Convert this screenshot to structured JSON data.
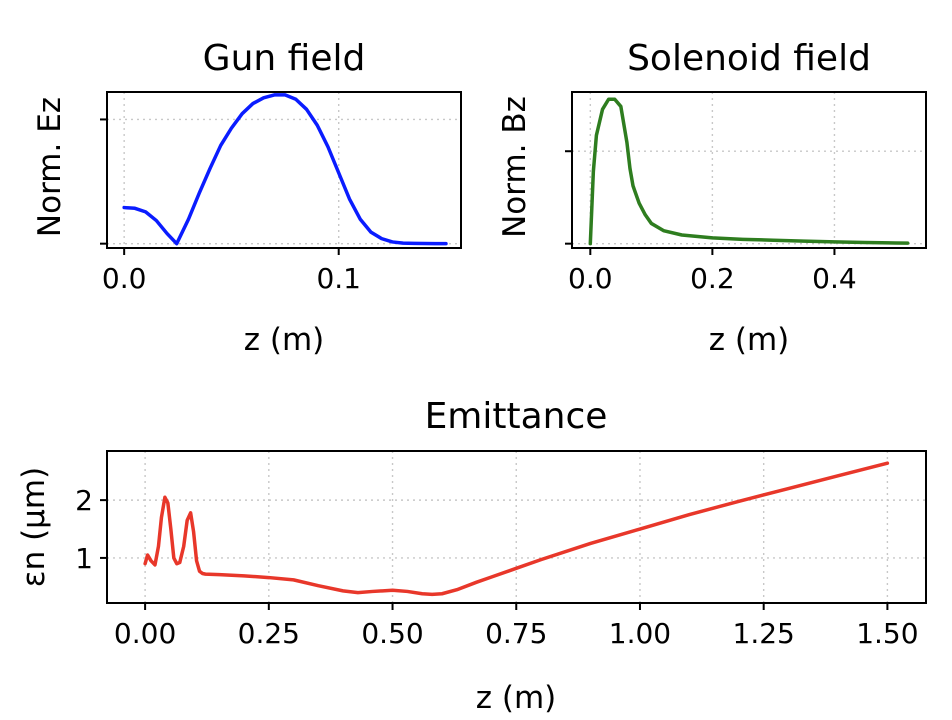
{
  "chart_data": [
    {
      "type": "line",
      "title": "Gun field",
      "xlabel": "z (m)",
      "ylabel": "Norm. Ez",
      "xlim": [
        -0.008,
        0.157
      ],
      "ylim": [
        -0.03,
        1.05
      ],
      "xticks": [
        0.0,
        0.1
      ],
      "xticklabels": [
        "0.0",
        "0.1"
      ],
      "yticks": [
        0.0,
        0.86
      ],
      "yticklabels": [
        "",
        ""
      ],
      "grid": true,
      "series": [
        {
          "color": "#0a1cff",
          "x": [
            0.0,
            0.005,
            0.01,
            0.015,
            0.02,
            0.0245,
            0.03,
            0.035,
            0.04,
            0.045,
            0.05,
            0.055,
            0.06,
            0.065,
            0.07,
            0.075,
            0.08,
            0.085,
            0.09,
            0.095,
            0.1,
            0.105,
            0.11,
            0.115,
            0.12,
            0.125,
            0.13,
            0.135,
            0.14,
            0.145,
            0.15
          ],
          "y": [
            0.25,
            0.245,
            0.22,
            0.16,
            0.07,
            0.0,
            0.17,
            0.35,
            0.52,
            0.68,
            0.8,
            0.9,
            0.97,
            1.01,
            1.03,
            1.03,
            1.0,
            0.93,
            0.82,
            0.67,
            0.49,
            0.31,
            0.17,
            0.08,
            0.035,
            0.012,
            0.004,
            0.002,
            0.001,
            0.0,
            0.0
          ]
        }
      ]
    },
    {
      "type": "line",
      "title": "Solenoid field",
      "xlabel": "z (m)",
      "ylabel": "Norm. Bz",
      "xlim": [
        -0.03,
        0.55
      ],
      "ylim": [
        -0.03,
        1.05
      ],
      "xticks": [
        0.0,
        0.2,
        0.4
      ],
      "xticklabels": [
        "0.0",
        "0.2",
        "0.4"
      ],
      "yticks": [
        0.0,
        0.64
      ],
      "yticklabels": [
        "",
        ""
      ],
      "grid": true,
      "series": [
        {
          "color": "#2e7d1f",
          "x": [
            0.0,
            0.005,
            0.01,
            0.02,
            0.03,
            0.04,
            0.05,
            0.06,
            0.065,
            0.07,
            0.08,
            0.09,
            0.1,
            0.12,
            0.15,
            0.2,
            0.25,
            0.3,
            0.35,
            0.4,
            0.45,
            0.5,
            0.52
          ],
          "y": [
            0.0,
            0.5,
            0.75,
            0.93,
            1.0,
            1.0,
            0.95,
            0.7,
            0.52,
            0.4,
            0.28,
            0.2,
            0.14,
            0.09,
            0.06,
            0.04,
            0.03,
            0.024,
            0.018,
            0.012,
            0.008,
            0.005,
            0.004
          ]
        }
      ]
    },
    {
      "type": "line",
      "title": "Emittance",
      "xlabel": "z (m)",
      "ylabel": "εn (μm)",
      "xlim": [
        -0.077,
        1.578
      ],
      "ylim": [
        0.22,
        2.85
      ],
      "xticks": [
        0.0,
        0.25,
        0.5,
        0.75,
        1.0,
        1.25,
        1.5
      ],
      "xticklabels": [
        "0.00",
        "0.25",
        "0.50",
        "0.75",
        "1.00",
        "1.25",
        "1.50"
      ],
      "yticks": [
        1,
        2
      ],
      "yticklabels": [
        "1",
        "2"
      ],
      "grid": true,
      "series": [
        {
          "color": "#e8372a",
          "x": [
            0.0,
            0.005,
            0.012,
            0.02,
            0.027,
            0.033,
            0.04,
            0.046,
            0.052,
            0.058,
            0.064,
            0.07,
            0.078,
            0.085,
            0.092,
            0.098,
            0.104,
            0.11,
            0.116,
            0.122,
            0.15,
            0.2,
            0.25,
            0.3,
            0.35,
            0.4,
            0.43,
            0.46,
            0.5,
            0.53,
            0.56,
            0.58,
            0.6,
            0.63,
            0.67,
            0.7,
            0.75,
            0.8,
            0.9,
            1.0,
            1.1,
            1.2,
            1.3,
            1.4,
            1.5
          ],
          "y": [
            0.9,
            1.05,
            0.95,
            0.88,
            1.2,
            1.7,
            2.05,
            1.95,
            1.5,
            1.0,
            0.9,
            0.92,
            1.2,
            1.65,
            1.78,
            1.45,
            0.95,
            0.77,
            0.73,
            0.72,
            0.71,
            0.69,
            0.66,
            0.62,
            0.52,
            0.43,
            0.4,
            0.42,
            0.44,
            0.42,
            0.38,
            0.37,
            0.38,
            0.45,
            0.58,
            0.67,
            0.82,
            0.97,
            1.25,
            1.5,
            1.75,
            1.98,
            2.2,
            2.42,
            2.64
          ]
        }
      ]
    }
  ]
}
